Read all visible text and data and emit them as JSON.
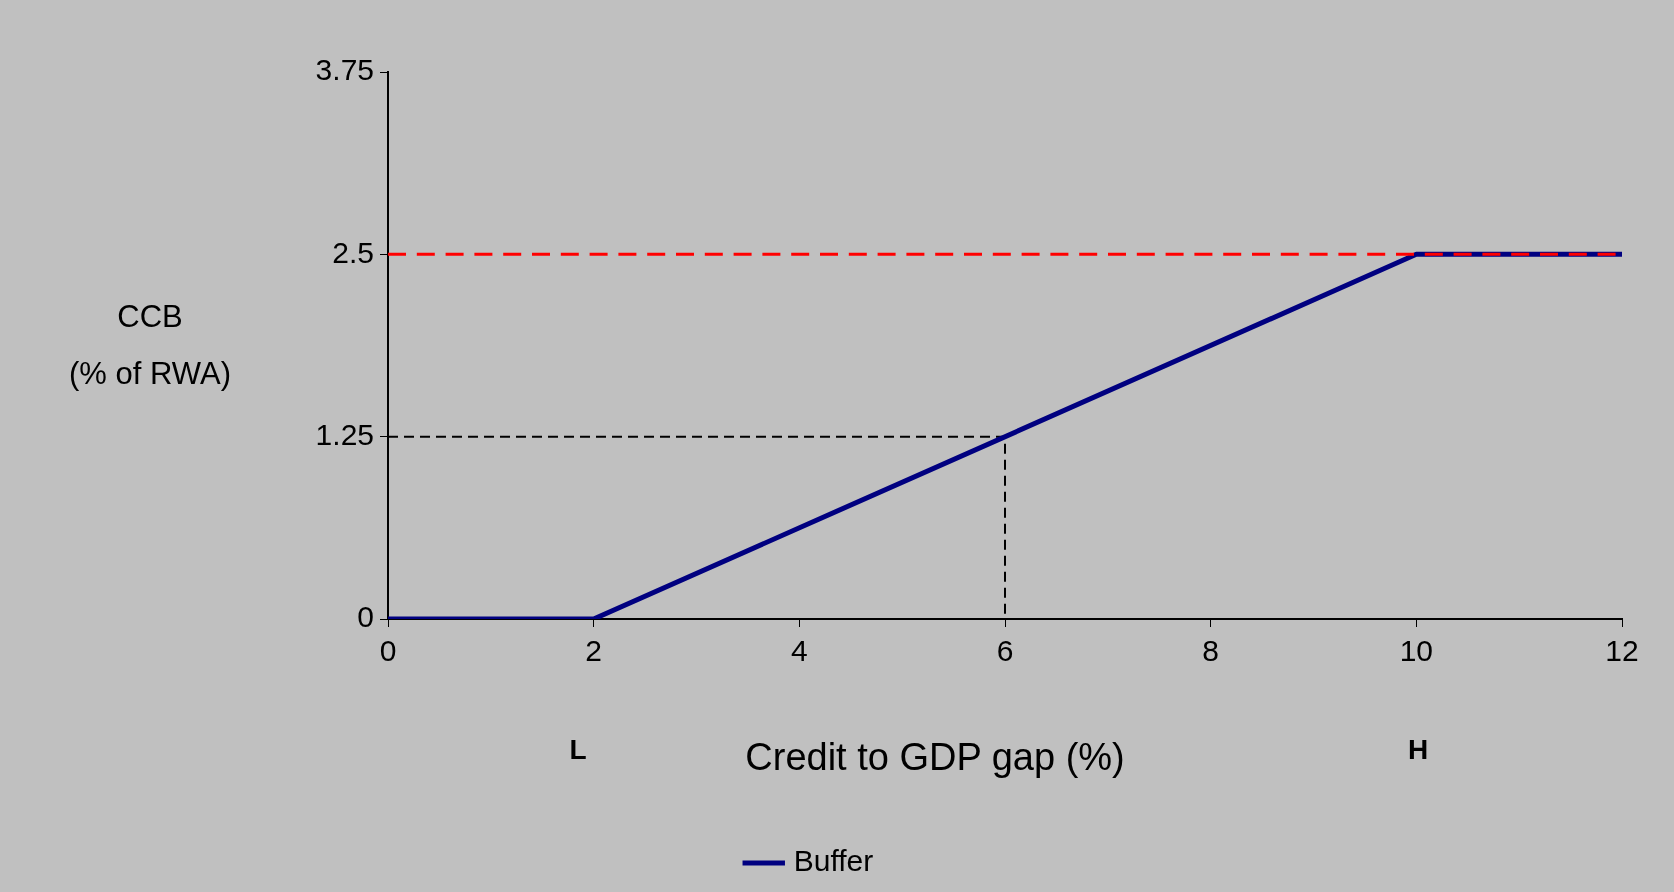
{
  "chart_data": {
    "type": "line",
    "xlabel": "Credit to GDP gap (%)",
    "ylabel": "CCB\n(% of RWA)",
    "xlim": [
      0,
      12
    ],
    "xticks": [
      0,
      2,
      4,
      6,
      8,
      10,
      12
    ],
    "ylim": [
      0,
      3.75
    ],
    "yticks": [
      0,
      1.25,
      2.5,
      3.75
    ],
    "series": [
      {
        "name": "Buffer",
        "color": "#000080",
        "x": [
          0,
          2,
          10,
          12
        ],
        "values": [
          0,
          0,
          2.5,
          2.5
        ]
      },
      {
        "color": "#000000",
        "x": [
          0,
          6,
          6
        ],
        "values": [
          1.25,
          1.25,
          0
        ],
        "line_style": "dashed"
      }
    ],
    "ref_lines": [
      {
        "axis": "y",
        "value": 2.5,
        "color": "#ff0000",
        "line_style": "dashed"
      }
    ],
    "annotations": [
      "L",
      "H"
    ],
    "grid": false,
    "legend": "bottom",
    "marker": "none",
    "line_style": "solid"
  }
}
